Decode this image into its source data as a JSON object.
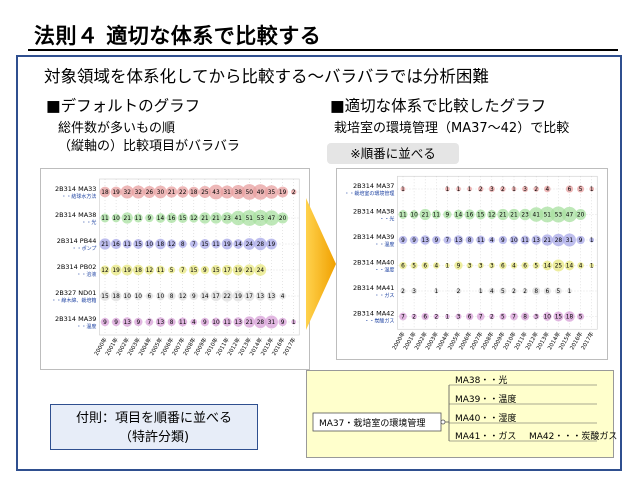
{
  "title": "法則４ 適切な体系で比較する",
  "subtitle": "対象領域を体系化してから比較する〜バラバラでは分析困難",
  "left": {
    "heading": "■デフォルトのグラフ",
    "note_line1": "総件数が多いもの順",
    "note_line2": "（縦軸の）比較項目がバラバラ"
  },
  "right": {
    "heading": "■適切な体系で比較したグラフ",
    "note_line1": "栽培室の環境管理（MA37〜42）で比較",
    "sort_note": "※順番に並べる"
  },
  "appendix": {
    "line1": "付則：項目を順番に並べる",
    "line2": "（特許分類)"
  },
  "years": [
    "2000年",
    "2001年",
    "2002年",
    "2003年",
    "2004年",
    "2005年",
    "2006年",
    "2007年",
    "2008年",
    "2009年",
    "2010年",
    "2011年",
    "2012年",
    "2013年",
    "2014年",
    "2015年",
    "2016年",
    "2017年"
  ],
  "colors": {
    "frame": "#2f4f8f",
    "accent_yellow": "#ffffcc",
    "arrow": "#f5b000"
  },
  "chart_left": {
    "rows": [
      {
        "code": "2B314 MA33",
        "desc": "・・結球水方法",
        "color": "#e8a0a0",
        "values": [
          18,
          19,
          32,
          32,
          26,
          30,
          21,
          22,
          18,
          25,
          43,
          31,
          38,
          50,
          49,
          35,
          19,
          2
        ]
      },
      {
        "code": "2B314 MA38",
        "desc": "・・光",
        "color": "#a8e0a0",
        "values": [
          11,
          10,
          21,
          11,
          9,
          14,
          16,
          15,
          12,
          21,
          21,
          23,
          41,
          51,
          53,
          47,
          20,
          ""
        ]
      },
      {
        "code": "2B314 PB44",
        "desc": "・・ポンプ",
        "color": "#a8a8e8",
        "values": [
          21,
          16,
          11,
          15,
          10,
          18,
          12,
          8,
          7,
          15,
          11,
          19,
          14,
          24,
          28,
          19,
          "",
          ""
        ]
      },
      {
        "code": "2B314 PB02",
        "desc": "・・溶液",
        "color": "#e8e880",
        "values": [
          12,
          19,
          19,
          18,
          12,
          11,
          5,
          7,
          15,
          9,
          15,
          17,
          19,
          21,
          24,
          "",
          "",
          ""
        ]
      },
      {
        "code": "2B327 ND01",
        "desc": "・・線木綿、栽培箱",
        "color": "#dddddd",
        "values": [
          15,
          18,
          10,
          10,
          6,
          10,
          8,
          12,
          9,
          14,
          17,
          22,
          19,
          17,
          13,
          13,
          4,
          ""
        ]
      },
      {
        "code": "2B314 MA39",
        "desc": "・・温度",
        "color": "#d8a0d8",
        "values": [
          9,
          9,
          13,
          9,
          7,
          13,
          8,
          11,
          4,
          9,
          10,
          11,
          13,
          21,
          28,
          31,
          9,
          1
        ]
      }
    ]
  },
  "chart_right": {
    "rows": [
      {
        "code": "2B314 MA37",
        "desc": "・・栽培室の環境管理",
        "color": "#e8a0a0",
        "values": [
          1,
          "",
          "",
          "",
          1,
          1,
          1,
          2,
          3,
          2,
          1,
          3,
          2,
          4,
          "",
          6,
          5,
          1
        ]
      },
      {
        "code": "2B314 MA38",
        "desc": "・・光",
        "color": "#a8e0a0",
        "values": [
          11,
          10,
          21,
          11,
          9,
          14,
          16,
          15,
          12,
          21,
          21,
          23,
          41,
          51,
          53,
          47,
          20,
          ""
        ]
      },
      {
        "code": "2B314 MA39",
        "desc": "・・温度",
        "color": "#a8a8e8",
        "values": [
          9,
          9,
          13,
          9,
          7,
          13,
          8,
          11,
          4,
          9,
          10,
          11,
          13,
          21,
          28,
          31,
          9,
          1
        ]
      },
      {
        "code": "2B314 MA40",
        "desc": "・・湿度",
        "color": "#e8e880",
        "values": [
          6,
          5,
          6,
          4,
          1,
          9,
          3,
          3,
          3,
          6,
          4,
          6,
          5,
          14,
          25,
          14,
          4,
          1
        ]
      },
      {
        "code": "2B314 MA41",
        "desc": "・・ガス",
        "color": "#dddddd",
        "values": [
          2,
          3,
          "",
          1,
          "",
          2,
          "",
          1,
          4,
          5,
          2,
          2,
          8,
          6,
          5,
          1,
          "",
          ""
        ]
      },
      {
        "code": "2B314 MA42",
        "desc": "・・炭酸ガス",
        "color": "#d8a0d8",
        "values": [
          7,
          2,
          6,
          2,
          1,
          3,
          6,
          7,
          2,
          5,
          7,
          8,
          3,
          10,
          15,
          18,
          5,
          ""
        ]
      }
    ]
  },
  "tree": {
    "root": "MA37・栽培室の環境管理",
    "items": [
      "MA38・・光",
      "MA39・・温度",
      "MA40・・湿度",
      "MA41・・ガス",
      "MA42・・・炭酸ガス"
    ]
  }
}
